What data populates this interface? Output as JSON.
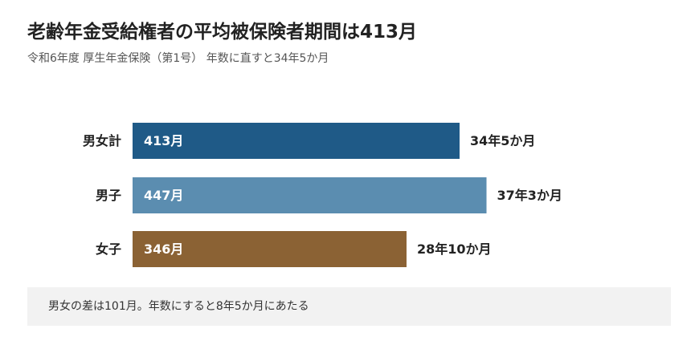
{
  "chart_data": {
    "type": "bar",
    "orientation": "horizontal",
    "title": "老齢年金受給権者の平均被保険者期間は413月",
    "subtitle": "令和6年度 厚生年金保険（第1号） 年数に直すと34年5か月",
    "categories": [
      "男女計",
      "男子",
      "女子"
    ],
    "values": [
      413,
      447,
      346
    ],
    "bar_labels": [
      "413月",
      "447月",
      "346月"
    ],
    "value_labels": [
      "34年5か月",
      "37年3か月",
      "28年10か月"
    ],
    "colors": [
      "#1f5a87",
      "#5b8db0",
      "#8b6234"
    ],
    "note": "男女の差は101月。年数にすると8年5か月にあたる"
  }
}
